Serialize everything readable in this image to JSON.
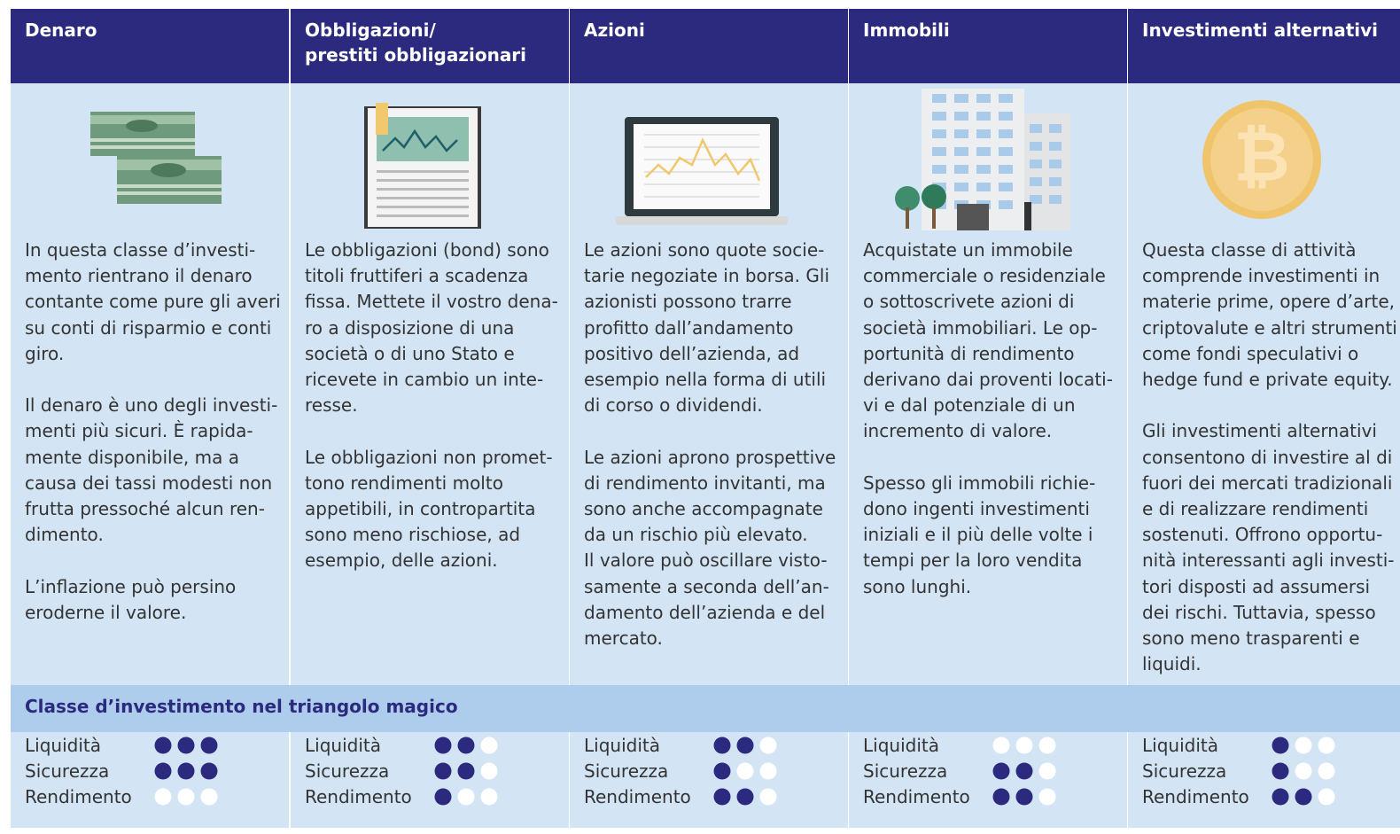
{
  "section_title": "Classe d’investimento nel triangolo magico",
  "criteria": [
    "Liquidità",
    "Sicurezza",
    "Rendimento"
  ],
  "max_rating": 3,
  "columns": [
    {
      "title": [
        "Denaro"
      ],
      "paragraphs": [
        [
          "In questa classe d’investi-",
          "mento rientrano il denaro",
          "contante come pure gli averi",
          "su conti di risparmio e conti",
          "giro."
        ],
        [
          "Il denaro è uno degli investi-",
          "menti più sicuri. È rapida-",
          "mente disponibile, ma a",
          "causa dei tassi modesti non",
          "frutta pressoché alcun ren-",
          "dimento."
        ],
        [
          "L’inflazione può persino",
          "eroderne il valore."
        ]
      ],
      "ratings": [
        3,
        3,
        0
      ]
    },
    {
      "title": [
        "Obbligazioni/",
        "prestiti obbligazionari"
      ],
      "paragraphs": [
        [
          "Le obbligazioni (bond) sono",
          "titoli fruttiferi a scadenza",
          "fissa. Mettete il vostro dena-",
          "ro a disposizione di una",
          "società o di uno Stato e",
          "ricevete in cambio un inte-",
          "resse."
        ],
        [
          "Le obbligazioni non promet-",
          "tono rendimenti molto",
          "appetibili, in contropartita",
          "sono meno rischiose, ad",
          "esempio, delle azioni."
        ]
      ],
      "ratings": [
        2,
        2,
        1
      ]
    },
    {
      "title": [
        "Azioni"
      ],
      "paragraphs": [
        [
          "Le azioni sono quote socie-",
          "tarie negoziate in borsa. Gli",
          "azionisti possono trarre",
          "profitto dall’andamento",
          "positivo dell’azienda, ad",
          "esempio nella forma di utili",
          "di corso o dividendi."
        ],
        [
          "Le azioni aprono prospettive",
          "di rendimento invitanti, ma",
          "sono anche accompagnate",
          "da un rischio più elevato.",
          "Il valore può oscillare visto-",
          "samente a seconda dell’an-",
          "damento dell’azienda e del",
          "mercato."
        ]
      ],
      "ratings": [
        2,
        1,
        2
      ]
    },
    {
      "title": [
        "Immobili"
      ],
      "paragraphs": [
        [
          "Acquistate un immobile",
          "commerciale o residenziale",
          "o sottoscrivete azioni di",
          "società immobiliari. Le op-",
          "portunità di rendimento",
          "derivano dai proventi locati-",
          "vi e dal potenziale di un",
          "incremento di valore."
        ],
        [
          "Spesso gli immobili richie-",
          "dono ingenti investimenti",
          "iniziali e il più delle volte i",
          "tempi per la loro vendita",
          "sono lunghi."
        ]
      ],
      "ratings": [
        0,
        2,
        2
      ]
    },
    {
      "title": [
        "Investimenti alternativi"
      ],
      "paragraphs": [
        [
          "Questa classe di attività",
          "comprende investimenti in",
          "materie prime, opere d’arte,",
          "criptovalute e altri strumenti",
          "come fondi speculativi o",
          "hedge fund e private equity."
        ],
        [
          "Gli investimenti alternativi",
          "consentono di investire al di",
          "fuori dei mercati tradizionali",
          "e di realizzare rendimenti",
          "sostenuti. Offrono opportu-",
          "nità interessanti agli investi-",
          "tori disposti ad assumersi",
          "dei rischi. Tuttavia, spesso",
          "sono meno trasparenti e",
          "liquidi."
        ]
      ],
      "ratings": [
        1,
        1,
        2
      ]
    }
  ]
}
